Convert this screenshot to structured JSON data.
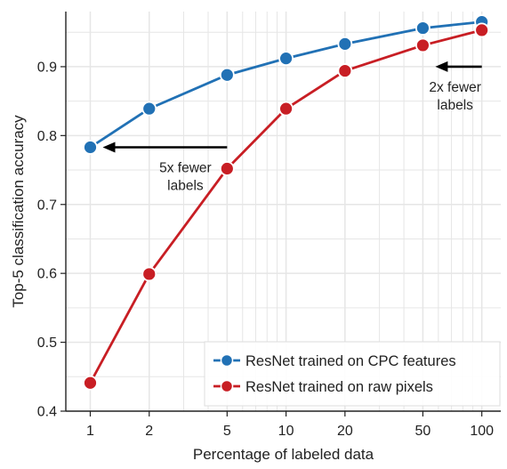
{
  "chart_data": {
    "type": "line",
    "title": "",
    "xlabel": "Percentage of labeled data",
    "ylabel": "Top-5 classification accuracy",
    "x_scale": "log",
    "x": [
      1,
      2,
      5,
      10,
      20,
      50,
      100
    ],
    "x_tick_labels": [
      "1",
      "2",
      "5",
      "10",
      "20",
      "50",
      "100"
    ],
    "xlim": [
      0.75,
      125
    ],
    "ylim": [
      0.4,
      0.98
    ],
    "y_ticks": [
      0.4,
      0.5,
      0.6,
      0.7,
      0.8,
      0.9
    ],
    "y_tick_labels": [
      "0.4",
      "0.5",
      "0.6",
      "0.7",
      "0.8",
      "0.9"
    ],
    "grid": true,
    "legend_position": "bottom-right",
    "series": [
      {
        "name": "ResNet trained on CPC features",
        "color": "#2171b5",
        "values": [
          0.783,
          0.839,
          0.888,
          0.912,
          0.933,
          0.956,
          0.965
        ]
      },
      {
        "name": "ResNet trained on raw pixels",
        "color": "#c81e24",
        "values": [
          0.441,
          0.599,
          0.752,
          0.839,
          0.894,
          0.931,
          0.953
        ]
      }
    ],
    "annotations": [
      {
        "text": [
          "5x fewer",
          "labels"
        ],
        "arrow_from": [
          5,
          0.783
        ],
        "arrow_to": [
          1,
          0.783
        ]
      },
      {
        "text": [
          "2x fewer",
          "labels"
        ],
        "arrow_from": [
          100,
          0.9
        ],
        "arrow_to": [
          50,
          0.9
        ]
      }
    ]
  }
}
